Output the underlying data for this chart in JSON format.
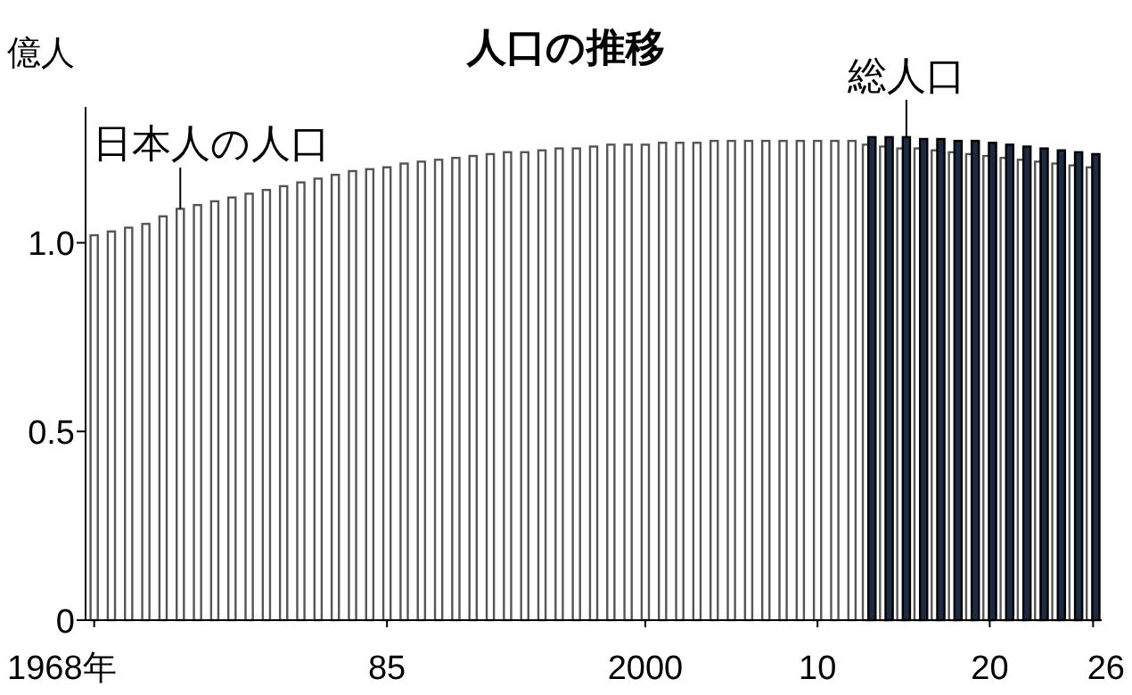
{
  "chart_data": {
    "type": "bar",
    "title": "人口の推移",
    "ylabel": "億人",
    "x": [
      1968,
      1969,
      1970,
      1971,
      1972,
      1973,
      1974,
      1975,
      1976,
      1977,
      1978,
      1979,
      1980,
      1981,
      1982,
      1983,
      1984,
      1985,
      1986,
      1987,
      1988,
      1989,
      1990,
      1991,
      1992,
      1993,
      1994,
      1995,
      1996,
      1997,
      1998,
      1999,
      2000,
      2001,
      2002,
      2003,
      2004,
      2005,
      2006,
      2007,
      2008,
      2009,
      2010,
      2011,
      2012,
      2013,
      2014,
      2015,
      2016,
      2017,
      2018,
      2019,
      2020,
      2021,
      2022,
      2023,
      2024,
      2025,
      2026
    ],
    "series": [
      {
        "name": "日本人の人口",
        "color": "#ffffff",
        "values": [
          1.02,
          1.03,
          1.04,
          1.05,
          1.07,
          1.09,
          1.1,
          1.11,
          1.12,
          1.13,
          1.14,
          1.15,
          1.16,
          1.17,
          1.18,
          1.19,
          1.195,
          1.2,
          1.21,
          1.215,
          1.22,
          1.225,
          1.23,
          1.235,
          1.24,
          1.24,
          1.245,
          1.25,
          1.25,
          1.255,
          1.26,
          1.26,
          1.26,
          1.265,
          1.265,
          1.265,
          1.27,
          1.27,
          1.27,
          1.27,
          1.27,
          1.27,
          1.27,
          1.27,
          1.27,
          1.26,
          1.255,
          1.25,
          1.25,
          1.245,
          1.24,
          1.235,
          1.23,
          1.225,
          1.22,
          1.215,
          1.21,
          1.205,
          1.2
        ]
      },
      {
        "name": "総人口",
        "color": "#1c2b42",
        "values": [
          null,
          null,
          null,
          null,
          null,
          null,
          null,
          null,
          null,
          null,
          null,
          null,
          null,
          null,
          null,
          null,
          null,
          null,
          null,
          null,
          null,
          null,
          null,
          null,
          null,
          null,
          null,
          null,
          null,
          null,
          null,
          null,
          null,
          null,
          null,
          null,
          null,
          null,
          null,
          null,
          null,
          null,
          null,
          null,
          null,
          1.28,
          1.28,
          1.28,
          1.275,
          1.275,
          1.27,
          1.27,
          1.265,
          1.26,
          1.255,
          1.25,
          1.245,
          1.24,
          1.235
        ]
      }
    ],
    "xlim": [
      1967.5,
      2026.5
    ],
    "xticks": [
      {
        "value": 1968,
        "label": "1968年"
      },
      {
        "value": 1985,
        "label": "85"
      },
      2000,
      {
        "value": 2010,
        "label": "10"
      },
      {
        "value": 2020,
        "label": "20"
      },
      {
        "value": 2026,
        "label": "26"
      }
    ],
    "ylim": [
      0,
      1.36
    ],
    "yticks": [
      0,
      0.5,
      {
        "value": 1,
        "label": "1.0"
      }
    ],
    "grid": false
  }
}
